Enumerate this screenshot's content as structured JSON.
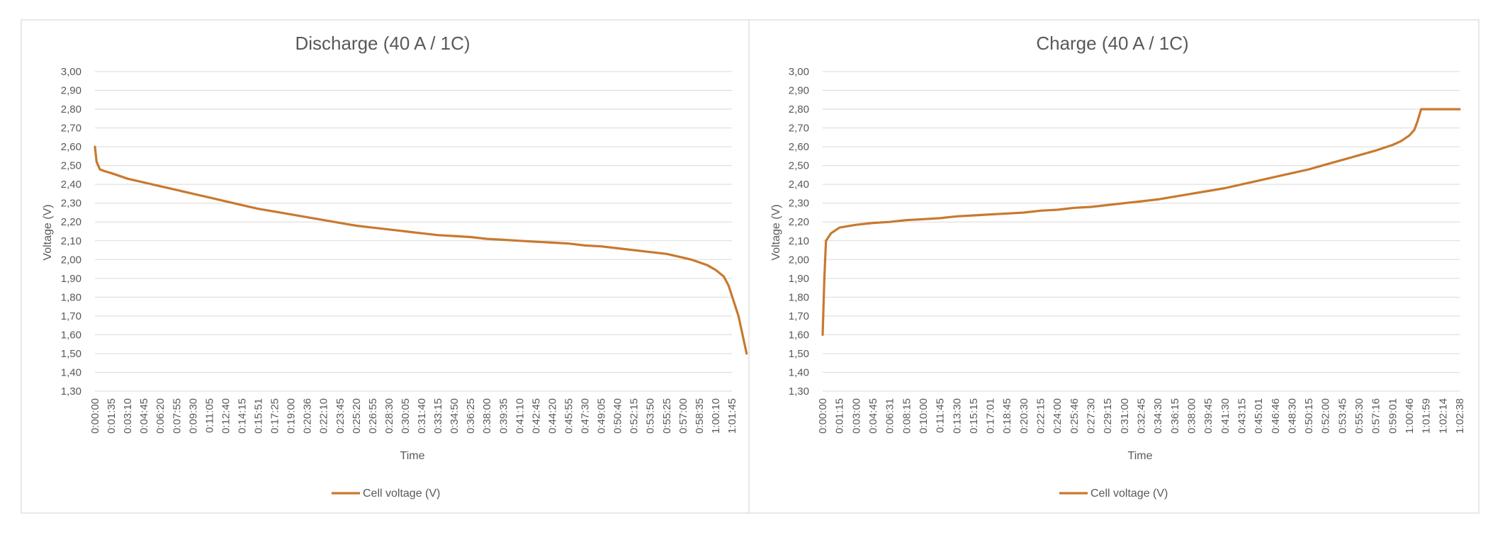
{
  "chart_data": [
    {
      "type": "line",
      "title": "Discharge (40 A / 1C)",
      "xlabel": "Time",
      "ylabel": "Voltage (V)",
      "ylim": [
        1.3,
        3.0
      ],
      "yticks": [
        "1,30",
        "1,40",
        "1,50",
        "1,60",
        "1,70",
        "1,80",
        "1,90",
        "2,00",
        "2,10",
        "2,20",
        "2,30",
        "2,40",
        "2,50",
        "2,60",
        "2,70",
        "2,80",
        "2,90",
        "3,00"
      ],
      "grid": true,
      "legend_position": "bottom",
      "categories": [
        "0:00:00",
        "0:01:35",
        "0:03:10",
        "0:04:45",
        "0:06:20",
        "0:07:55",
        "0:09:30",
        "0:11:05",
        "0:12:40",
        "0:14:15",
        "0:15:51",
        "0:17:25",
        "0:19:00",
        "0:20:36",
        "0:22:10",
        "0:23:45",
        "0:25:20",
        "0:26:55",
        "0:28:30",
        "0:30:05",
        "0:31:40",
        "0:33:15",
        "0:34:50",
        "0:36:25",
        "0:38:00",
        "0:39:35",
        "0:41:10",
        "0:42:45",
        "0:44:20",
        "0:45:55",
        "0:47:30",
        "0:49:05",
        "0:50:40",
        "0:52:15",
        "0:53:50",
        "0:55:25",
        "0:57:00",
        "0:58:35",
        "1:00:10",
        "1:01:45"
      ],
      "series": [
        {
          "name": "Cell voltage (V)",
          "color": "#c8792f",
          "points": [
            [
              0,
              2.6
            ],
            [
              0.1,
              2.52
            ],
            [
              0.3,
              2.48
            ],
            [
              0.6,
              2.47
            ],
            [
              1,
              2.46
            ],
            [
              2,
              2.43
            ],
            [
              3,
              2.41
            ],
            [
              4,
              2.39
            ],
            [
              5,
              2.37
            ],
            [
              6,
              2.35
            ],
            [
              7,
              2.33
            ],
            [
              8,
              2.31
            ],
            [
              9,
              2.29
            ],
            [
              10,
              2.27
            ],
            [
              11,
              2.255
            ],
            [
              12,
              2.24
            ],
            [
              13,
              2.225
            ],
            [
              14,
              2.21
            ],
            [
              15,
              2.195
            ],
            [
              16,
              2.18
            ],
            [
              17,
              2.17
            ],
            [
              18,
              2.16
            ],
            [
              19,
              2.15
            ],
            [
              20,
              2.14
            ],
            [
              21,
              2.13
            ],
            [
              22,
              2.125
            ],
            [
              23,
              2.12
            ],
            [
              24,
              2.11
            ],
            [
              25,
              2.105
            ],
            [
              26,
              2.1
            ],
            [
              27,
              2.095
            ],
            [
              28,
              2.09
            ],
            [
              29,
              2.085
            ],
            [
              30,
              2.075
            ],
            [
              31,
              2.07
            ],
            [
              32,
              2.06
            ],
            [
              33,
              2.05
            ],
            [
              34,
              2.04
            ],
            [
              35,
              2.03
            ],
            [
              36,
              2.01
            ],
            [
              36.5,
              2.0
            ],
            [
              37,
              1.985
            ],
            [
              37.5,
              1.97
            ],
            [
              38,
              1.945
            ],
            [
              38.5,
              1.91
            ],
            [
              38.8,
              1.86
            ],
            [
              39.1,
              1.78
            ],
            [
              39.4,
              1.7
            ],
            [
              39.6,
              1.62
            ],
            [
              39.8,
              1.54
            ],
            [
              39.9,
              1.5
            ]
          ]
        }
      ]
    },
    {
      "type": "line",
      "title": "Charge (40 A / 1C)",
      "xlabel": "Time",
      "ylabel": "Voltage (V)",
      "ylim": [
        1.3,
        3.0
      ],
      "yticks": [
        "1,30",
        "1,40",
        "1,50",
        "1,60",
        "1,70",
        "1,80",
        "1,90",
        "2,00",
        "2,10",
        "2,20",
        "2,30",
        "2,40",
        "2,50",
        "2,60",
        "2,70",
        "2,80",
        "2,90",
        "3,00"
      ],
      "grid": true,
      "legend_position": "bottom",
      "categories": [
        "0:00:00",
        "0:01:15",
        "0:03:00",
        "0:04:45",
        "0:06:31",
        "0:08:15",
        "0:10:00",
        "0:11:45",
        "0:13:30",
        "0:15:15",
        "0:17:01",
        "0:18:45",
        "0:20:30",
        "0:22:15",
        "0:24:00",
        "0:25:46",
        "0:27:30",
        "0:29:15",
        "0:31:00",
        "0:32:45",
        "0:34:30",
        "0:36:15",
        "0:38:00",
        "0:39:45",
        "0:41:30",
        "0:43:15",
        "0:45:01",
        "0:46:46",
        "0:48:30",
        "0:50:15",
        "0:52:00",
        "0:53:45",
        "0:55:30",
        "0:57:16",
        "0:59:01",
        "1:00:46",
        "1:01:59",
        "1:02:14",
        "1:02:38"
      ],
      "series": [
        {
          "name": "Cell voltage (V)",
          "color": "#c8792f",
          "points": [
            [
              0,
              1.6
            ],
            [
              0.1,
              1.9
            ],
            [
              0.2,
              2.1
            ],
            [
              0.5,
              2.14
            ],
            [
              1,
              2.17
            ],
            [
              2,
              2.185
            ],
            [
              3,
              2.195
            ],
            [
              4,
              2.2
            ],
            [
              5,
              2.21
            ],
            [
              6,
              2.215
            ],
            [
              7,
              2.22
            ],
            [
              8,
              2.23
            ],
            [
              9,
              2.235
            ],
            [
              10,
              2.24
            ],
            [
              11,
              2.245
            ],
            [
              12,
              2.25
            ],
            [
              13,
              2.26
            ],
            [
              14,
              2.265
            ],
            [
              15,
              2.275
            ],
            [
              16,
              2.28
            ],
            [
              17,
              2.29
            ],
            [
              18,
              2.3
            ],
            [
              19,
              2.31
            ],
            [
              20,
              2.32
            ],
            [
              21,
              2.335
            ],
            [
              22,
              2.35
            ],
            [
              23,
              2.365
            ],
            [
              24,
              2.38
            ],
            [
              25,
              2.4
            ],
            [
              26,
              2.42
            ],
            [
              27,
              2.44
            ],
            [
              28,
              2.46
            ],
            [
              29,
              2.48
            ],
            [
              30,
              2.505
            ],
            [
              31,
              2.53
            ],
            [
              32,
              2.555
            ],
            [
              33,
              2.58
            ],
            [
              34,
              2.61
            ],
            [
              34.5,
              2.63
            ],
            [
              35,
              2.66
            ],
            [
              35.3,
              2.69
            ],
            [
              35.5,
              2.74
            ],
            [
              35.7,
              2.8
            ],
            [
              36,
              2.8
            ],
            [
              37,
              2.8
            ],
            [
              38,
              2.8
            ]
          ]
        }
      ]
    }
  ]
}
